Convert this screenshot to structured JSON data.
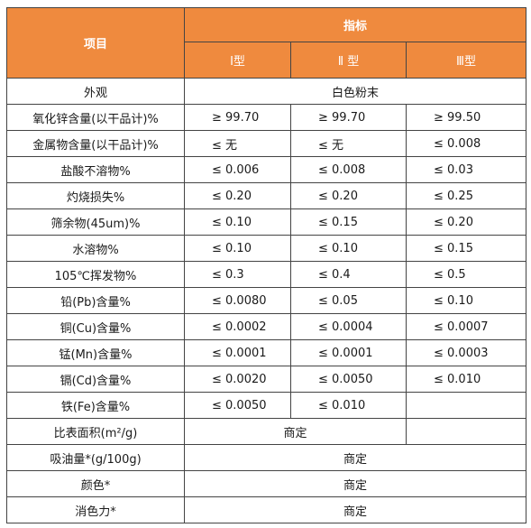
{
  "header": {
    "item_label": "项目",
    "indicator_label": "指标",
    "types": [
      "I型",
      "Ⅱ 型",
      "Ⅲ型"
    ]
  },
  "rows": [
    {
      "label": "外观",
      "merged": "白色粉末"
    },
    {
      "label": "氧化锌含量(以干品计)%",
      "values": [
        "≥ 99.70",
        "≥ 99.70",
        "≥ 99.50"
      ]
    },
    {
      "label": "金属物含量(以干品计)%",
      "values": [
        "≤ 无",
        "≤ 无",
        "≤ 0.008"
      ]
    },
    {
      "label": "盐酸不溶物%",
      "values": [
        "≤ 0.006",
        "≤ 0.008",
        "≤ 0.03"
      ]
    },
    {
      "label": "灼烧损失%",
      "values": [
        "≤ 0.20",
        "≤ 0.20",
        "≤ 0.25"
      ]
    },
    {
      "label": "筛余物(45um)%",
      "values": [
        "≤ 0.10",
        "≤ 0.15",
        "≤ 0.20"
      ]
    },
    {
      "label": "水溶物%",
      "values": [
        "≤ 0.10",
        "≤ 0.10",
        "≤ 0.15"
      ]
    },
    {
      "label": "105℃挥发物%",
      "values": [
        "≤ 0.3",
        "≤ 0.4",
        "≤ 0.5"
      ]
    },
    {
      "label": "铅(Pb)含量%",
      "values": [
        "≤ 0.0080",
        "≤ 0.05",
        "≤ 0.10"
      ]
    },
    {
      "label": "铜(Cu)含量%",
      "values": [
        "≤ 0.0002",
        "≤ 0.0004",
        "≤ 0.0007"
      ]
    },
    {
      "label": "锰(Mn)含量%",
      "values": [
        "≤ 0.0001",
        "≤ 0.0001",
        "≤ 0.0003"
      ]
    },
    {
      "label": "镉(Cd)含量%",
      "values": [
        "≤ 0.0020",
        "≤ 0.0050",
        "≤ 0.010"
      ]
    },
    {
      "label": "铁(Fe)含量%",
      "values": [
        "≤ 0.0050",
        "≤ 0.010",
        ""
      ]
    },
    {
      "label": "比表面积(m²/g)",
      "merged2": "商定",
      "values": [
        "",
        "",
        ""
      ]
    },
    {
      "label": "吸油量*(g/100g)",
      "merged": "商定"
    },
    {
      "label": "颜色*",
      "merged": "商定"
    },
    {
      "label": "消色力*",
      "merged": "商定"
    }
  ]
}
